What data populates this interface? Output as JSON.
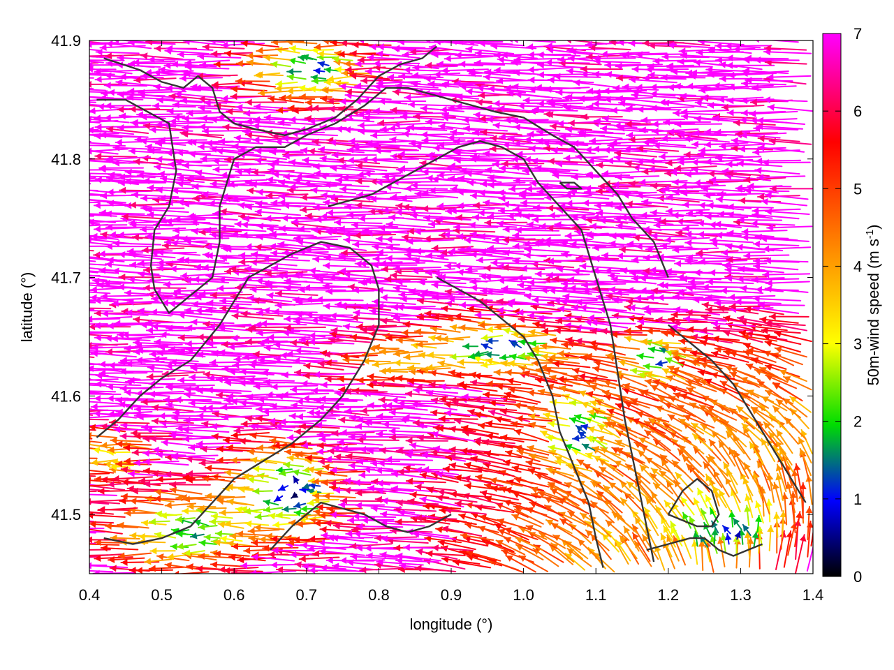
{
  "chart_data": {
    "type": "vector-field",
    "xlabel": "longitude (°)",
    "ylabel": "latitude (°)",
    "xlim": [
      0.4,
      1.4
    ],
    "ylim": [
      41.45,
      41.9
    ],
    "x_ticks": [
      "0.4",
      "0.5",
      "0.6",
      "0.7",
      "0.8",
      "0.9",
      "1.0",
      "1.1",
      "1.2",
      "1.3",
      "1.4"
    ],
    "y_ticks": [
      "41.5",
      "41.6",
      "41.7",
      "41.8",
      "41.9"
    ],
    "colorbar": {
      "label_main": "50m-wind speed (m s",
      "label_sup": "-1",
      "label_end": ")",
      "range": [
        0,
        7
      ],
      "ticks": [
        "0",
        "1",
        "2",
        "3",
        "4",
        "5",
        "6",
        "7"
      ],
      "colormap": [
        "#000000",
        "#0000ff",
        "#00dd00",
        "#ffff00",
        "#ff8c00",
        "#ff0000",
        "#ff00ff"
      ]
    },
    "contours": [
      [
        [
          0.42,
          41.885
        ],
        [
          0.47,
          41.875
        ],
        [
          0.5,
          41.865
        ],
        [
          0.53,
          41.86
        ],
        [
          0.55,
          41.87
        ],
        [
          0.57,
          41.86
        ],
        [
          0.58,
          41.84
        ],
        [
          0.6,
          41.83
        ],
        [
          0.63,
          41.825
        ],
        [
          0.67,
          41.82
        ],
        [
          0.7,
          41.825
        ],
        [
          0.74,
          41.835
        ],
        [
          0.77,
          41.85
        ],
        [
          0.8,
          41.87
        ],
        [
          0.83,
          41.88
        ],
        [
          0.86,
          41.885
        ],
        [
          0.88,
          41.895
        ]
      ],
      [
        [
          0.41,
          41.85
        ],
        [
          0.45,
          41.85
        ],
        [
          0.48,
          41.84
        ],
        [
          0.51,
          41.83
        ],
        [
          0.52,
          41.79
        ],
        [
          0.51,
          41.76
        ],
        [
          0.49,
          41.74
        ],
        [
          0.485,
          41.71
        ],
        [
          0.49,
          41.69
        ],
        [
          0.51,
          41.67
        ],
        [
          0.53,
          41.68
        ],
        [
          0.57,
          41.7
        ],
        [
          0.58,
          41.73
        ],
        [
          0.58,
          41.76
        ],
        [
          0.6,
          41.8
        ],
        [
          0.63,
          41.81
        ],
        [
          0.67,
          41.81
        ],
        [
          0.7,
          41.82
        ],
        [
          0.74,
          41.83
        ],
        [
          0.78,
          41.845
        ],
        [
          0.81,
          41.86
        ],
        [
          0.84,
          41.86
        ],
        [
          0.87,
          41.855
        ],
        [
          0.9,
          41.85
        ],
        [
          0.93,
          41.845
        ],
        [
          0.96,
          41.84
        ],
        [
          1.0,
          41.835
        ],
        [
          1.04,
          41.82
        ],
        [
          1.07,
          41.81
        ],
        [
          1.1,
          41.79
        ],
        [
          1.13,
          41.77
        ],
        [
          1.15,
          41.75
        ],
        [
          1.18,
          41.73
        ],
        [
          1.2,
          41.7
        ]
      ],
      [
        [
          0.41,
          41.565
        ],
        [
          0.44,
          41.58
        ],
        [
          0.47,
          41.6
        ],
        [
          0.5,
          41.615
        ],
        [
          0.54,
          41.63
        ],
        [
          0.58,
          41.66
        ],
        [
          0.62,
          41.7
        ],
        [
          0.65,
          41.71
        ],
        [
          0.68,
          41.72
        ],
        [
          0.72,
          41.73
        ],
        [
          0.76,
          41.725
        ],
        [
          0.79,
          41.71
        ],
        [
          0.8,
          41.69
        ],
        [
          0.8,
          41.66
        ],
        [
          0.78,
          41.63
        ],
        [
          0.75,
          41.6
        ],
        [
          0.72,
          41.58
        ],
        [
          0.68,
          41.56
        ],
        [
          0.64,
          41.545
        ],
        [
          0.6,
          41.53
        ],
        [
          0.57,
          41.51
        ],
        [
          0.54,
          41.49
        ],
        [
          0.5,
          41.48
        ],
        [
          0.46,
          41.475
        ],
        [
          0.42,
          41.48
        ]
      ],
      [
        [
          0.73,
          41.76
        ],
        [
          0.76,
          41.765
        ],
        [
          0.79,
          41.77
        ],
        [
          0.82,
          41.78
        ],
        [
          0.85,
          41.79
        ],
        [
          0.88,
          41.8
        ],
        [
          0.91,
          41.81
        ],
        [
          0.94,
          41.815
        ],
        [
          0.97,
          41.81
        ],
        [
          1.0,
          41.8
        ],
        [
          1.02,
          41.78
        ],
        [
          1.05,
          41.76
        ],
        [
          1.08,
          41.74
        ],
        [
          1.1,
          41.7
        ],
        [
          1.12,
          41.66
        ],
        [
          1.13,
          41.62
        ],
        [
          1.14,
          41.58
        ],
        [
          1.15,
          41.55
        ],
        [
          1.16,
          41.52
        ],
        [
          1.17,
          41.49
        ],
        [
          1.18,
          41.46
        ]
      ],
      [
        [
          0.88,
          41.7
        ],
        [
          0.91,
          41.69
        ],
        [
          0.94,
          41.68
        ],
        [
          0.97,
          41.665
        ],
        [
          1.0,
          41.65
        ],
        [
          1.02,
          41.63
        ],
        [
          1.04,
          41.6
        ],
        [
          1.05,
          41.57
        ],
        [
          1.07,
          41.54
        ],
        [
          1.09,
          41.51
        ],
        [
          1.1,
          41.48
        ],
        [
          1.11,
          41.455
        ]
      ],
      [
        [
          1.2,
          41.66
        ],
        [
          1.23,
          41.645
        ],
        [
          1.26,
          41.63
        ],
        [
          1.29,
          41.61
        ],
        [
          1.31,
          41.59
        ],
        [
          1.33,
          41.57
        ],
        [
          1.35,
          41.55
        ],
        [
          1.37,
          41.53
        ],
        [
          1.39,
          41.51
        ]
      ],
      [
        [
          1.2,
          41.5
        ],
        [
          1.22,
          41.52
        ],
        [
          1.24,
          41.53
        ],
        [
          1.26,
          41.52
        ],
        [
          1.27,
          41.5
        ],
        [
          1.26,
          41.49
        ],
        [
          1.24,
          41.49
        ],
        [
          1.22,
          41.495
        ],
        [
          1.2,
          41.5
        ]
      ],
      [
        [
          0.65,
          41.47
        ],
        [
          0.68,
          41.49
        ],
        [
          0.7,
          41.5
        ],
        [
          0.72,
          41.51
        ],
        [
          0.75,
          41.505
        ],
        [
          0.78,
          41.5
        ],
        [
          0.81,
          41.49
        ],
        [
          0.84,
          41.485
        ],
        [
          0.87,
          41.49
        ],
        [
          0.9,
          41.5
        ]
      ],
      [
        [
          1.05,
          41.78
        ],
        [
          1.06,
          41.775
        ],
        [
          1.08,
          41.775
        ],
        [
          1.07,
          41.78
        ],
        [
          1.05,
          41.78
        ]
      ],
      [
        [
          1.17,
          41.47
        ],
        [
          1.2,
          41.475
        ],
        [
          1.23,
          41.48
        ],
        [
          1.25,
          41.48
        ],
        [
          1.27,
          41.47
        ],
        [
          1.29,
          41.465
        ],
        [
          1.31,
          41.47
        ],
        [
          1.33,
          41.475
        ]
      ]
    ],
    "grid": false,
    "legend": "colorbar-right"
  }
}
